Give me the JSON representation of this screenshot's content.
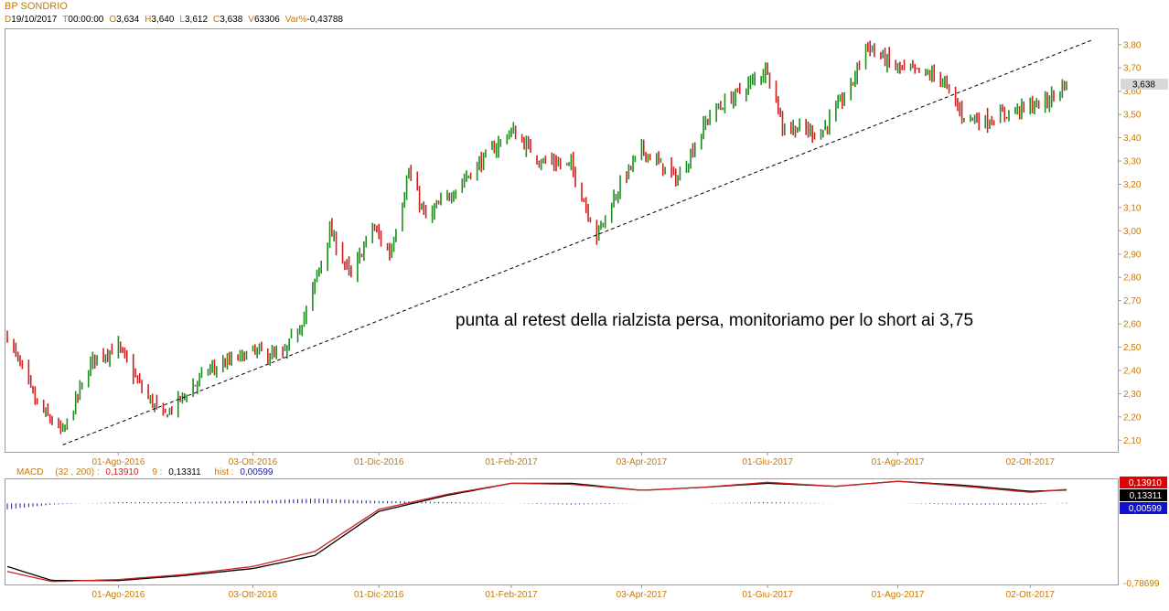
{
  "header": {
    "title": "BP SONDRIO",
    "fields": [
      {
        "key": "D",
        "value": "19/10/2017"
      },
      {
        "key": "T",
        "value": "00:00:00"
      },
      {
        "key": "O",
        "value": "3,634"
      },
      {
        "key": "H",
        "value": "3,640"
      },
      {
        "key": "L",
        "value": "3,612"
      },
      {
        "key": "C",
        "value": "3,638"
      },
      {
        "key": "V",
        "value": "63306"
      },
      {
        "key": "Var%",
        "value": "-0,43788"
      }
    ]
  },
  "colors": {
    "up": "#1e8c1e",
    "down": "#d02020",
    "axis_text": "#c87800",
    "macd_line": "#d02020",
    "signal_line": "#000000",
    "hist": "#1a1aa0"
  },
  "price_chart": {
    "annotation": "punta al retest della rialzista persa, monitoriamo per lo short ai 3,75",
    "last_price_label": "3,638",
    "y_ticks": [
      "2,10",
      "2,20",
      "2,30",
      "2,40",
      "2,50",
      "2,60",
      "2,70",
      "2,80",
      "2,90",
      "3,00",
      "3,10",
      "3,20",
      "3,30",
      "3,40",
      "3,50",
      "3,60",
      "3,70",
      "3,80"
    ],
    "x_ticks": [
      "01-Ago-2016",
      "03-Ott-2016",
      "01-Dic-2016",
      "01-Feb-2017",
      "03-Apr-2017",
      "01-Giu-2017",
      "01-Ago-2017",
      "02-Ott-2017"
    ]
  },
  "macd_panel": {
    "name": "MACD",
    "params": "(32 , 200)",
    "macd_value": "0,13910",
    "signal_period": "9",
    "signal_value": "0,13311",
    "hist_label": "hist",
    "hist_value": "0,00599",
    "bottom_label": "-0,78699",
    "x_ticks": [
      "01-Ago-2016",
      "03-Ott-2016",
      "01-Dic-2016",
      "01-Feb-2017",
      "03-Apr-2017",
      "01-Giu-2017",
      "01-Ago-2017",
      "02-Ott-2017"
    ]
  },
  "chart_data": [
    {
      "type": "candlestick",
      "title": "BP SONDRIO",
      "ylim": [
        2.05,
        3.87
      ],
      "x_range": [
        "2016-06-10",
        "2017-10-19"
      ],
      "trendline": {
        "style": "dashed",
        "from": {
          "x": "2016-07-06",
          "y": 2.08
        },
        "to": {
          "x": "2017-10-31",
          "y": 3.82
        }
      },
      "close_path": [
        {
          "x": "2016-06-10",
          "y": 2.55
        },
        {
          "x": "2016-06-24",
          "y": 2.25
        },
        {
          "x": "2016-07-06",
          "y": 2.13
        },
        {
          "x": "2016-07-20",
          "y": 2.45
        },
        {
          "x": "2016-08-01",
          "y": 2.5
        },
        {
          "x": "2016-08-12",
          "y": 2.32
        },
        {
          "x": "2016-08-22",
          "y": 2.2
        },
        {
          "x": "2016-09-12",
          "y": 2.4
        },
        {
          "x": "2016-10-03",
          "y": 2.48
        },
        {
          "x": "2016-10-17",
          "y": 2.46
        },
        {
          "x": "2016-10-28",
          "y": 2.65
        },
        {
          "x": "2016-11-08",
          "y": 3.0
        },
        {
          "x": "2016-11-18",
          "y": 2.8
        },
        {
          "x": "2016-11-28",
          "y": 3.02
        },
        {
          "x": "2016-12-06",
          "y": 2.9
        },
        {
          "x": "2016-12-15",
          "y": 3.25
        },
        {
          "x": "2016-12-23",
          "y": 3.05
        },
        {
          "x": "2017-01-16",
          "y": 3.28
        },
        {
          "x": "2017-02-01",
          "y": 3.43
        },
        {
          "x": "2017-02-15",
          "y": 3.3
        },
        {
          "x": "2017-03-01",
          "y": 3.28
        },
        {
          "x": "2017-03-13",
          "y": 2.98
        },
        {
          "x": "2017-03-24",
          "y": 3.2
        },
        {
          "x": "2017-04-03",
          "y": 3.35
        },
        {
          "x": "2017-04-20",
          "y": 3.22
        },
        {
          "x": "2017-05-05",
          "y": 3.5
        },
        {
          "x": "2017-05-22",
          "y": 3.62
        },
        {
          "x": "2017-06-01",
          "y": 3.7
        },
        {
          "x": "2017-06-08",
          "y": 3.45
        },
        {
          "x": "2017-06-26",
          "y": 3.42
        },
        {
          "x": "2017-07-10",
          "y": 3.62
        },
        {
          "x": "2017-07-17",
          "y": 3.8
        },
        {
          "x": "2017-07-31",
          "y": 3.7
        },
        {
          "x": "2017-08-21",
          "y": 3.66
        },
        {
          "x": "2017-08-31",
          "y": 3.5
        },
        {
          "x": "2017-09-11",
          "y": 3.47
        },
        {
          "x": "2017-09-25",
          "y": 3.52
        },
        {
          "x": "2017-10-09",
          "y": 3.55
        },
        {
          "x": "2017-10-19",
          "y": 3.638
        }
      ]
    },
    {
      "type": "line",
      "title": "MACD (32 , 200)",
      "x_range": [
        "2016-06-10",
        "2017-10-19"
      ],
      "series": [
        {
          "name": "MACD",
          "points": [
            {
              "x": "2016-06-10",
              "y": -0.68
            },
            {
              "x": "2016-07-01",
              "y": -0.78
            },
            {
              "x": "2016-08-01",
              "y": -0.76
            },
            {
              "x": "2016-09-01",
              "y": -0.71
            },
            {
              "x": "2016-10-03",
              "y": -0.63
            },
            {
              "x": "2016-11-01",
              "y": -0.48
            },
            {
              "x": "2016-12-01",
              "y": -0.06
            },
            {
              "x": "2017-01-02",
              "y": 0.09
            },
            {
              "x": "2017-02-01",
              "y": 0.2
            },
            {
              "x": "2017-03-01",
              "y": 0.19
            },
            {
              "x": "2017-04-03",
              "y": 0.13
            },
            {
              "x": "2017-05-02",
              "y": 0.16
            },
            {
              "x": "2017-06-01",
              "y": 0.21
            },
            {
              "x": "2017-07-03",
              "y": 0.17
            },
            {
              "x": "2017-08-01",
              "y": 0.22
            },
            {
              "x": "2017-09-01",
              "y": 0.17
            },
            {
              "x": "2017-10-02",
              "y": 0.11
            },
            {
              "x": "2017-10-19",
              "y": 0.1391
            }
          ]
        },
        {
          "name": "9",
          "points": [
            {
              "x": "2016-06-10",
              "y": -0.63
            },
            {
              "x": "2016-07-01",
              "y": -0.77
            },
            {
              "x": "2016-08-01",
              "y": -0.77
            },
            {
              "x": "2016-09-01",
              "y": -0.72
            },
            {
              "x": "2016-10-03",
              "y": -0.65
            },
            {
              "x": "2016-11-01",
              "y": -0.52
            },
            {
              "x": "2016-12-01",
              "y": -0.08
            },
            {
              "x": "2017-01-02",
              "y": 0.08
            },
            {
              "x": "2017-02-01",
              "y": 0.2
            },
            {
              "x": "2017-03-01",
              "y": 0.2
            },
            {
              "x": "2017-04-03",
              "y": 0.13
            },
            {
              "x": "2017-05-02",
              "y": 0.16
            },
            {
              "x": "2017-06-01",
              "y": 0.2
            },
            {
              "x": "2017-07-03",
              "y": 0.17
            },
            {
              "x": "2017-08-01",
              "y": 0.22
            },
            {
              "x": "2017-09-01",
              "y": 0.18
            },
            {
              "x": "2017-10-02",
              "y": 0.12
            },
            {
              "x": "2017-10-19",
              "y": 0.13311
            }
          ]
        }
      ],
      "histogram": {
        "name": "hist",
        "last": 0.00599
      }
    }
  ]
}
